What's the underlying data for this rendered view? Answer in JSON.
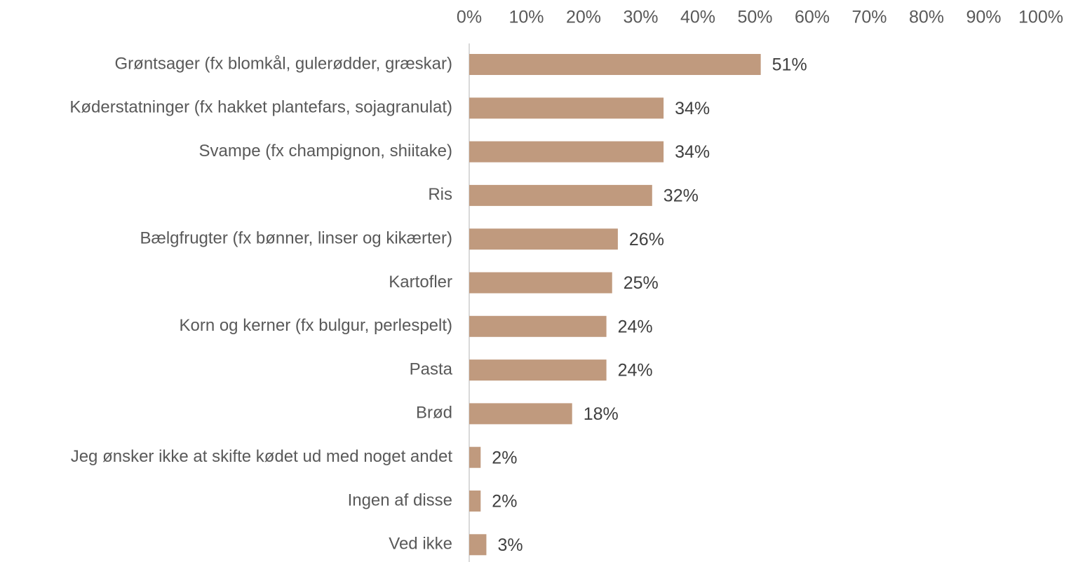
{
  "chart_data": {
    "type": "hbar",
    "categories": [
      "Grøntsager (fx blomkål, gulerødder, græskar)",
      "Køderstatninger (fx hakket plantefars, sojagranulat)",
      "Svampe (fx champignon, shiitake)",
      "Ris",
      "Bælgfrugter (fx bønner, linser og kikærter)",
      "Kartofler",
      "Korn og kerner (fx bulgur, perlespelt)",
      "Pasta",
      "Brød",
      "Jeg ønsker ikke at skifte kødet ud med noget andet",
      "Ingen af disse",
      "Ved ikke"
    ],
    "values": [
      51,
      34,
      34,
      32,
      26,
      25,
      24,
      24,
      18,
      2,
      2,
      3
    ],
    "value_labels": [
      "51%",
      "34%",
      "34%",
      "32%",
      "26%",
      "25%",
      "24%",
      "24%",
      "18%",
      "2%",
      "2%",
      "3%"
    ],
    "color": "#c09a7e",
    "xlim": [
      0,
      100
    ],
    "xticks": [
      {
        "value": 0,
        "label": "0%"
      },
      {
        "value": 10,
        "label": "10%"
      },
      {
        "value": 20,
        "label": "20%"
      },
      {
        "value": 30,
        "label": "30%"
      },
      {
        "value": 40,
        "label": "40%"
      },
      {
        "value": 50,
        "label": "50%"
      },
      {
        "value": 60,
        "label": "60%"
      },
      {
        "value": 70,
        "label": "70%"
      },
      {
        "value": 80,
        "label": "80%"
      },
      {
        "value": 90,
        "label": "90%"
      },
      {
        "value": 100,
        "label": "100%"
      }
    ],
    "grid": false
  }
}
